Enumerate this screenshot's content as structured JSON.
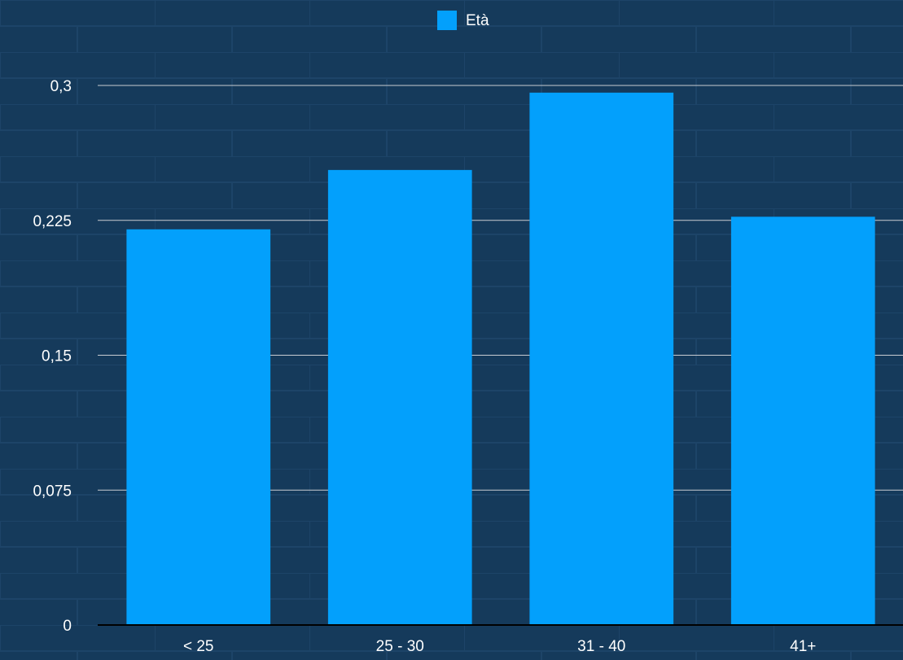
{
  "chart_data": {
    "type": "bar",
    "categories": [
      "< 25",
      "25 - 30",
      "31 - 40",
      "41+"
    ],
    "series": [
      {
        "name": "Età",
        "color": "#03a0fc",
        "values": [
          0.22,
          0.253,
          0.296,
          0.227
        ]
      }
    ],
    "ylim": [
      0,
      0.3
    ],
    "yticks": [
      0,
      {
        "value": 0.075,
        "label": "0,075"
      },
      {
        "value": 0.15,
        "label": "0,15"
      },
      {
        "value": 0.225,
        "label": "0,225"
      },
      {
        "value": 0.3,
        "label": "0,3"
      }
    ],
    "grid": true,
    "legend": "top"
  }
}
